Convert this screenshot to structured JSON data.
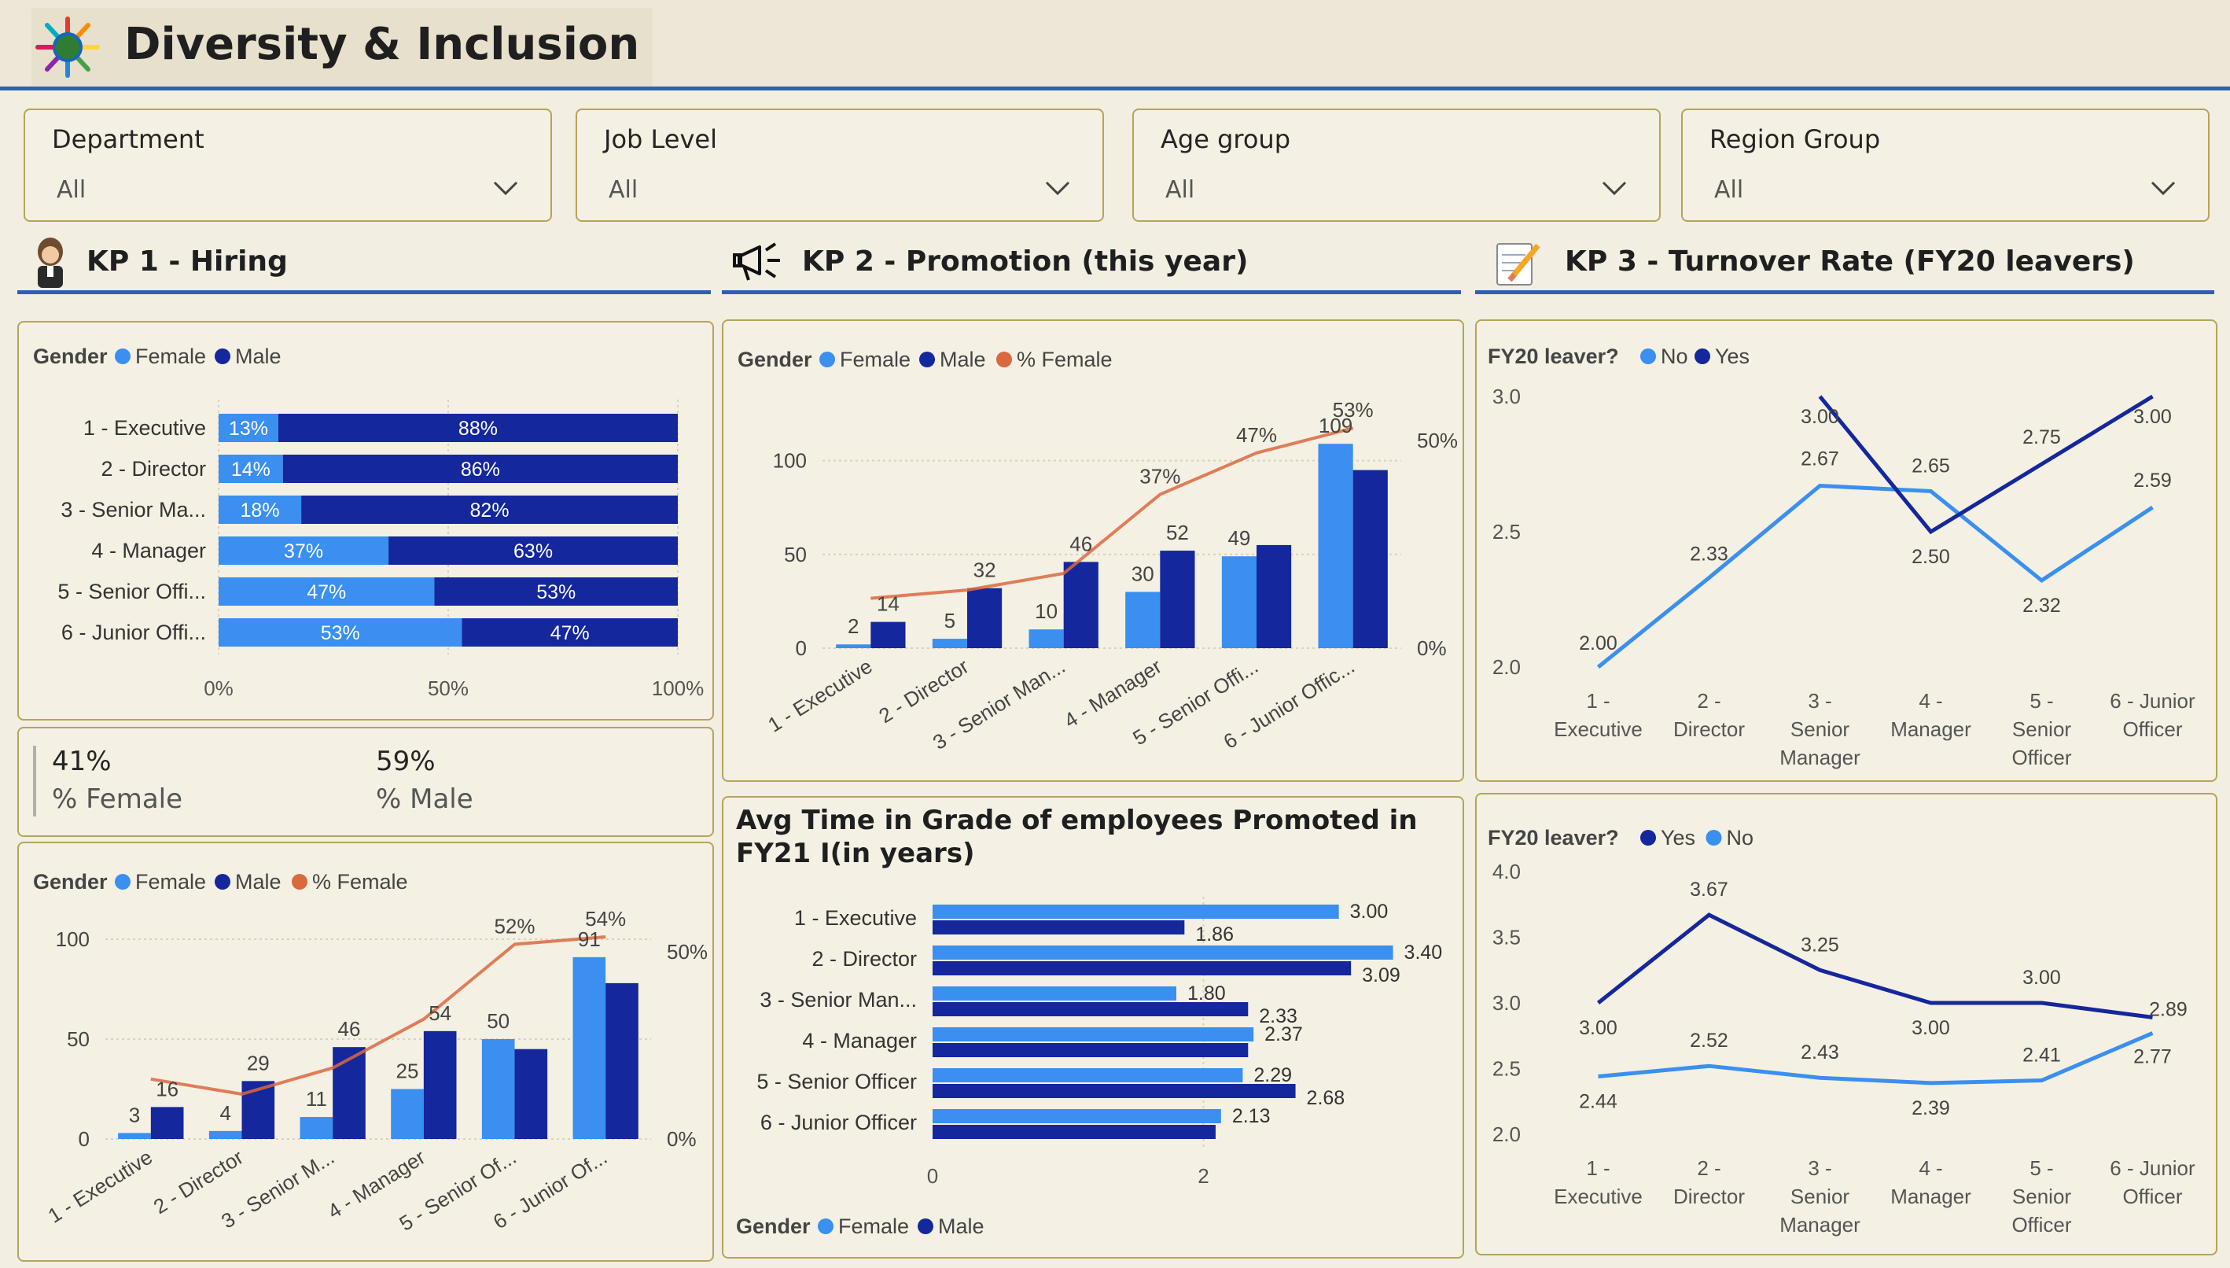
{
  "app": {
    "title": "Diversity & Inclusion"
  },
  "colors": {
    "female": "#3a8ff0",
    "male": "#14279c",
    "pct_female": "#d9693f",
    "accent": "#2f5fb4",
    "border": "#b3a55c",
    "bg": "#f2eee1"
  },
  "icons": {
    "logo": "globe-people-icon",
    "kp1": "woman-avatar-icon",
    "kp2": "megaphone-icon",
    "kp3": "notepad-pencil-icon",
    "dropdown": "chevron-down-icon"
  },
  "slicers": [
    {
      "label": "Department",
      "value": "All"
    },
    {
      "label": "Job Level",
      "value": "All"
    },
    {
      "label": "Age group",
      "value": "All"
    },
    {
      "label": "Region Group",
      "value": "All"
    }
  ],
  "sections": {
    "kp1": "KP 1 - Hiring",
    "kp2": "KP 2 - Promotion (this year)",
    "kp3": "KP 3 - Turnover Rate (FY20 leavers)"
  },
  "legends": {
    "gender": "Gender",
    "female": "Female",
    "male": "Male",
    "pct_female": "% Female",
    "fy20": "FY20 leaver?",
    "no": "No",
    "yes": "Yes"
  },
  "cards": {
    "female_value": "41%",
    "female_label": "% Female",
    "male_value": "59%",
    "male_label": "% Male"
  },
  "chart_data": [
    {
      "id": "hiring-stacked",
      "type": "bar",
      "orientation": "horizontal-stacked-100",
      "categories": [
        "1 - Executive",
        "2 - Director",
        "3 - Senior Ma...",
        "4 - Manager",
        "5 - Senior Offi...",
        "6 - Junior Offi..."
      ],
      "series": [
        {
          "name": "Female",
          "values": [
            13,
            14,
            18,
            37,
            47,
            53
          ],
          "labels": [
            "13%",
            "14%",
            "18%",
            "37%",
            "47%",
            "53%"
          ]
        },
        {
          "name": "Male",
          "values": [
            88,
            86,
            82,
            63,
            53,
            47
          ],
          "labels": [
            "88%",
            "86%",
            "82%",
            "63%",
            "53%",
            "47%"
          ]
        }
      ],
      "xticks": [
        "0%",
        "50%",
        "100%"
      ],
      "legend": "top-left"
    },
    {
      "id": "hiring-combo",
      "type": "bar",
      "categories": [
        "1 - Executive",
        "2 - Director",
        "3 - Senior M...",
        "4 - Manager",
        "5 - Senior Of...",
        "6 - Junior Of..."
      ],
      "series": [
        {
          "name": "Female",
          "values": [
            3,
            4,
            11,
            25,
            50,
            91
          ]
        },
        {
          "name": "Male",
          "values": [
            16,
            29,
            46,
            54,
            45,
            78
          ]
        },
        {
          "name": "% Female",
          "type": "line",
          "values": [
            16,
            12,
            19,
            32,
            52,
            54
          ]
        }
      ],
      "point_labels": [
        {
          "text": "16",
          "index": 0,
          "value": 16
        },
        {
          "text": "3",
          "index": 0,
          "value": 3
        },
        {
          "text": "4",
          "index": 1,
          "value": 4
        },
        {
          "text": "29",
          "index": 1,
          "value": 29
        },
        {
          "text": "11",
          "index": 2,
          "value": 11
        },
        {
          "text": "46",
          "index": 2,
          "value": 46
        },
        {
          "text": "25",
          "index": 3,
          "value": 25
        },
        {
          "text": "54",
          "index": 3,
          "value": 54
        },
        {
          "text": "52%",
          "index": 4,
          "value": 52
        },
        {
          "text": "50",
          "index": 4,
          "value": 50
        },
        {
          "text": "91",
          "index": 5,
          "value": 91
        },
        {
          "text": "54%",
          "index": 5,
          "value": 54
        }
      ],
      "yticks": [
        "0",
        "50",
        "100"
      ],
      "ylim": [
        0,
        100
      ],
      "y2ticks": [
        "0%",
        "50%"
      ],
      "legend": "top-left"
    },
    {
      "id": "promotion-combo",
      "type": "bar",
      "categories": [
        "1 - Executive",
        "2 - Director",
        "3 - Senior Man...",
        "4 - Manager",
        "5 - Senior Offi...",
        "6 - Junior Offic..."
      ],
      "series": [
        {
          "name": "Female",
          "values": [
            2,
            5,
            10,
            30,
            49,
            109
          ]
        },
        {
          "name": "Male",
          "values": [
            14,
            32,
            46,
            52,
            55,
            95
          ]
        },
        {
          "name": "% Female",
          "type": "line",
          "values": [
            12,
            14,
            18,
            37,
            47,
            53
          ]
        }
      ],
      "point_labels": [
        {
          "text": "2",
          "index": 0,
          "value": 2
        },
        {
          "text": "14",
          "index": 0,
          "value": 14
        },
        {
          "text": "5",
          "index": 1,
          "value": 5
        },
        {
          "text": "32",
          "index": 1,
          "value": 32
        },
        {
          "text": "10",
          "index": 2,
          "value": 10
        },
        {
          "text": "46",
          "index": 2,
          "value": 46
        },
        {
          "text": "30",
          "index": 3,
          "value": 30
        },
        {
          "text": "37%",
          "index": 3,
          "value": 37
        },
        {
          "text": "52",
          "index": 3,
          "value": 52
        },
        {
          "text": "49",
          "index": 4,
          "value": 49
        },
        {
          "text": "47%",
          "index": 4,
          "value": 47
        },
        {
          "text": "109",
          "index": 5,
          "value": 109
        },
        {
          "text": "53%",
          "index": 5,
          "value": 53
        }
      ],
      "yticks": [
        "0",
        "50",
        "100"
      ],
      "ylim": [
        0,
        120
      ],
      "y2ticks": [
        "0%",
        "50%"
      ],
      "legend": "top-left"
    },
    {
      "id": "avg-time-grade",
      "type": "bar",
      "orientation": "horizontal-clustered",
      "title": "Avg Time in Grade of employees Promoted in FY21 I(in years)",
      "categories": [
        "1 - Executive",
        "2 - Director",
        "3 - Senior Man...",
        "4 - Manager",
        "5 - Senior Officer",
        "6 - Junior Officer"
      ],
      "series": [
        {
          "name": "Female",
          "values": [
            3.0,
            3.4,
            1.8,
            2.37,
            2.29,
            2.13
          ]
        },
        {
          "name": "Male",
          "values": [
            1.86,
            3.09,
            2.33,
            null,
            2.68,
            null
          ]
        }
      ],
      "value_labels": [
        "3.00",
        "1.86",
        "3.40",
        "3.09",
        "1.80",
        "2.33",
        "2.37",
        "2.29",
        "2.68",
        "2.13"
      ],
      "xticks": [
        "0",
        "2"
      ],
      "legend": "bottom-left"
    },
    {
      "id": "turnover-age",
      "type": "line",
      "categories": [
        "1 - Executive",
        "2 - Director",
        "3 - Senior Manager",
        "4 - Manager",
        "5 - Senior Officer",
        "6 - Junior Officer"
      ],
      "series": [
        {
          "name": "No",
          "values": [
            2.0,
            2.33,
            2.67,
            2.65,
            2.32,
            2.59
          ],
          "labels": [
            "2.00",
            "2.33",
            "2.67",
            "2.65",
            "2.32",
            "2.59"
          ]
        },
        {
          "name": "Yes",
          "values": [
            null,
            null,
            3.0,
            2.5,
            2.75,
            3.0
          ],
          "labels": [
            "",
            "",
            "3.00",
            "2.50",
            "2.75",
            "3.00"
          ]
        }
      ],
      "yticks": [
        "2.0",
        "2.5",
        "3.0"
      ],
      "ylim": [
        2.0,
        3.0
      ],
      "legend": "top-left"
    },
    {
      "id": "turnover-level",
      "type": "line",
      "categories": [
        "1 - Executive",
        "2 - Director",
        "3 - Senior Manager",
        "4 - Manager",
        "5 - Senior Officer",
        "6 - Junior Officer"
      ],
      "series": [
        {
          "name": "Yes",
          "values": [
            3.0,
            3.67,
            3.25,
            3.0,
            3.0,
            2.89
          ],
          "labels": [
            "3.00",
            "3.67",
            "3.25",
            "3.00",
            "3.00",
            "2.89"
          ]
        },
        {
          "name": "No",
          "values": [
            2.44,
            2.52,
            2.43,
            2.39,
            2.41,
            2.77
          ],
          "labels": [
            "2.44",
            "2.52",
            "2.43",
            "2.39",
            "2.41",
            "2.77"
          ]
        }
      ],
      "yticks": [
        "2.0",
        "2.5",
        "3.0",
        "3.5",
        "4.0"
      ],
      "ylim": [
        2.0,
        4.0
      ],
      "legend": "top-left"
    }
  ]
}
